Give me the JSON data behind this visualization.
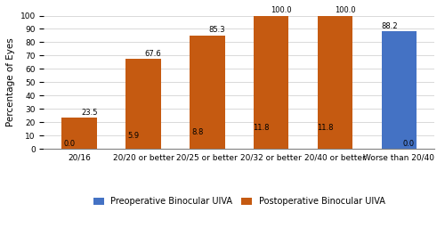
{
  "categories": [
    "20/16",
    "20/20 or better",
    "20/25 or better",
    "20/32 or better",
    "20/40 or better",
    "Worse than 20/40"
  ],
  "preop": [
    0.0,
    5.9,
    8.8,
    11.8,
    11.8,
    88.2
  ],
  "postop": [
    23.5,
    67.6,
    85.3,
    100.0,
    100.0,
    0.0
  ],
  "preop_color": "#4472c4",
  "postop_color": "#c55a11",
  "ylabel": "Percentage of Eyes",
  "ylim": [
    0,
    100
  ],
  "yticks": [
    0,
    10,
    20,
    30,
    40,
    50,
    60,
    70,
    80,
    90,
    100
  ],
  "legend_preop": "Preoperative Binocular UIVA",
  "legend_postop": "Postoperative Binocular UIVA",
  "bar_width": 0.55,
  "label_fontsize": 6.0,
  "axis_label_fontsize": 7.5,
  "tick_fontsize": 6.5,
  "legend_fontsize": 7.0
}
